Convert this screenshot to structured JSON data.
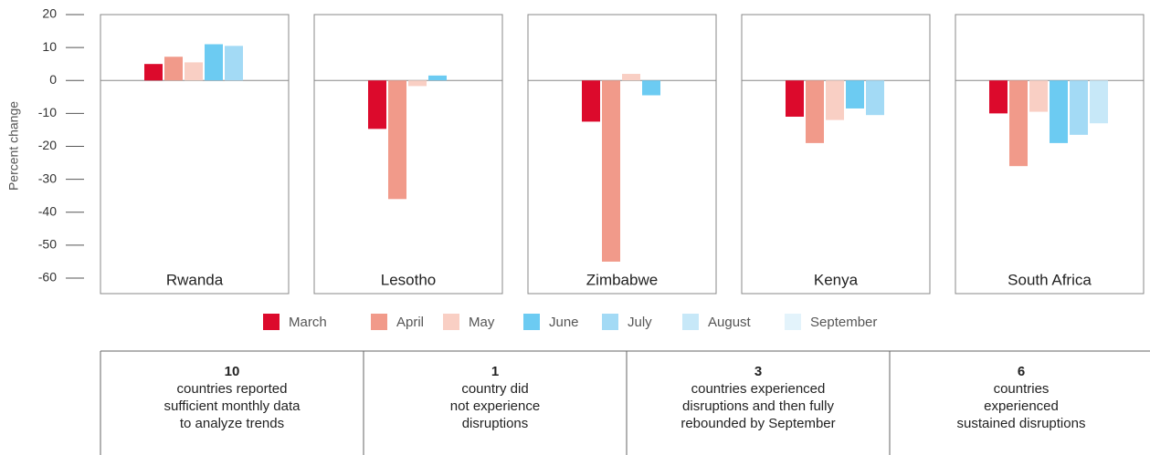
{
  "chart_data": {
    "type": "bar",
    "ylabel": "Percent change",
    "categories": [
      "Rwanda",
      "Lesotho",
      "Zimbabwe",
      "Kenya",
      "South Africa"
    ],
    "series": [
      {
        "name": "March",
        "color": "#dc0a2c",
        "values": [
          5,
          -14.7,
          -12.5,
          -11,
          -10
        ]
      },
      {
        "name": "April",
        "color": "#f19a8a",
        "values": [
          7.2,
          -36,
          -55,
          -19,
          -26
        ]
      },
      {
        "name": "May",
        "color": "#f9cfc4",
        "values": [
          5.5,
          -1.7,
          2,
          -12,
          -9.5
        ]
      },
      {
        "name": "June",
        "color": "#6ccbf2",
        "values": [
          11,
          1.5,
          -4.5,
          -8.5,
          -19
        ]
      },
      {
        "name": "July",
        "color": "#a3daf5",
        "values": [
          10.5,
          null,
          null,
          -10.5,
          -16.5
        ]
      },
      {
        "name": "August",
        "color": "#c7e8f8",
        "values": [
          null,
          null,
          null,
          null,
          -13
        ]
      },
      {
        "name": "September",
        "color": "#e3f3fb",
        "values": [
          null,
          null,
          null,
          null,
          null
        ]
      }
    ],
    "ylim": [
      -60,
      20
    ],
    "yticks": [
      20,
      10,
      0,
      -10,
      -20,
      -30,
      -40,
      -50,
      -60
    ],
    "grid": false
  },
  "summary": [
    {
      "number": "10",
      "lines": [
        "countries reported",
        "sufficient monthly data",
        "to analyze trends"
      ]
    },
    {
      "number": "1",
      "lines": [
        "country did",
        "not experience",
        "disruptions"
      ]
    },
    {
      "number": "3",
      "lines": [
        "countries experienced",
        "disruptions and then fully",
        "rebounded by September"
      ]
    },
    {
      "number": "6",
      "lines": [
        "countries",
        "experienced",
        "sustained disruptions"
      ]
    }
  ]
}
